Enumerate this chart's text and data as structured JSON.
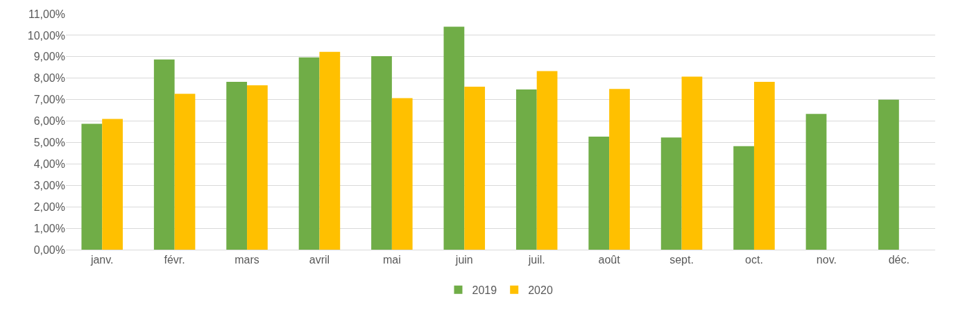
{
  "chart_data": {
    "type": "bar",
    "categories": [
      "janv.",
      "févr.",
      "mars",
      "avril",
      "mai",
      "juin",
      "juil.",
      "août",
      "sept.",
      "oct.",
      "nov.",
      "déc."
    ],
    "series": [
      {
        "name": "2019",
        "color": "#70ad47",
        "values": [
          5.87,
          8.87,
          7.83,
          8.97,
          9.03,
          10.4,
          7.47,
          5.27,
          5.23,
          4.83,
          6.33,
          7.0
        ]
      },
      {
        "name": "2020",
        "color": "#ffc000",
        "values": [
          6.1,
          7.27,
          7.67,
          9.23,
          7.07,
          7.6,
          8.33,
          7.5,
          8.07,
          7.83,
          null,
          null
        ]
      }
    ],
    "ylim": [
      0,
      11
    ],
    "yticks": [
      {
        "value": 0,
        "label": "0,00%"
      },
      {
        "value": 1,
        "label": "1,00%"
      },
      {
        "value": 2,
        "label": "2,00%"
      },
      {
        "value": 3,
        "label": "3,00%"
      },
      {
        "value": 4,
        "label": "4,00%"
      },
      {
        "value": 5,
        "label": "5,00%"
      },
      {
        "value": 6,
        "label": "6,00%"
      },
      {
        "value": 7,
        "label": "7,00%"
      },
      {
        "value": 8,
        "label": "8,00%"
      },
      {
        "value": 9,
        "label": "9,00%"
      },
      {
        "value": 10,
        "label": "10,00%"
      },
      {
        "value": 11,
        "label": "11,00%"
      }
    ],
    "grid": "y",
    "legend": "bottom"
  }
}
